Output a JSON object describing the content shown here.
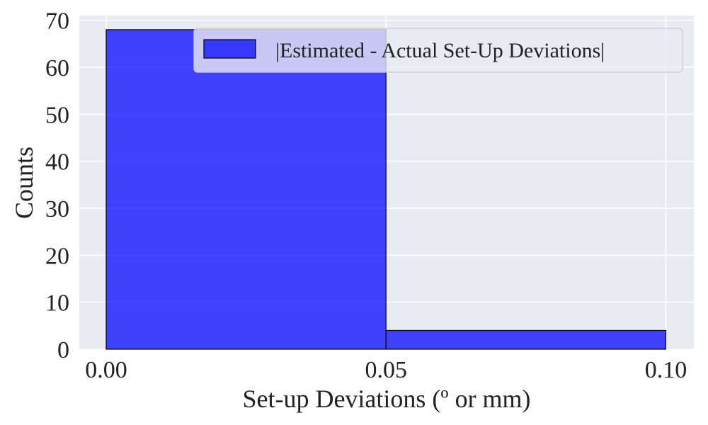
{
  "chart_data": {
    "type": "bar",
    "subtype": "histogram",
    "bins": [
      {
        "start": 0.0,
        "end": 0.05,
        "count": 68
      },
      {
        "start": 0.05,
        "end": 0.1,
        "count": 4
      }
    ],
    "series": [
      {
        "name": "|Estimated - Actual Set-Up Deviations|",
        "values": [
          68,
          4
        ]
      }
    ],
    "xlabel": "Set-up Deviations (º or mm)",
    "ylabel": "Counts",
    "xlim": [
      -0.0048,
      0.105
    ],
    "ylim": [
      0,
      71
    ],
    "xticks": [
      {
        "value": 0.0,
        "label": "0.00"
      },
      {
        "value": 0.05,
        "label": "0.05"
      },
      {
        "value": 0.1,
        "label": "0.10"
      }
    ],
    "yticks": [
      {
        "value": 0,
        "label": "0"
      },
      {
        "value": 10,
        "label": "10"
      },
      {
        "value": 20,
        "label": "20"
      },
      {
        "value": 30,
        "label": "30"
      },
      {
        "value": 40,
        "label": "40"
      },
      {
        "value": 50,
        "label": "50"
      },
      {
        "value": 60,
        "label": "60"
      },
      {
        "value": 70,
        "label": "70"
      }
    ],
    "grid": true,
    "legend_position": "top-right",
    "colors": {
      "bar_fill": "#0000ff",
      "bar_opacity": 0.72,
      "bar_edge": "#000000",
      "plot_background": "#eaeaf2",
      "grid": "#ffffff"
    }
  }
}
